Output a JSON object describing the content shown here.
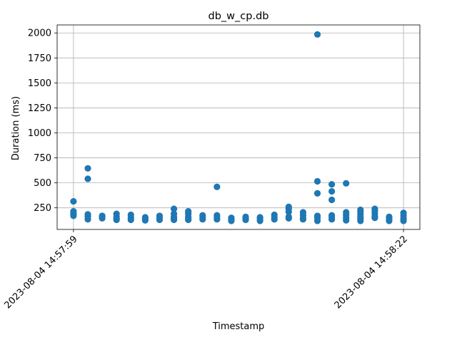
{
  "chart_data": {
    "type": "scatter",
    "title": "db_w_cp.db",
    "xlabel": "Timestamp",
    "ylabel": "Duration (ms)",
    "x_unit": "seconds",
    "xlim": [
      -1.14,
      24.14
    ],
    "ylim": [
      34,
      2080
    ],
    "yticks": [
      250,
      500,
      750,
      1000,
      1250,
      1500,
      1750,
      2000
    ],
    "yticklabels": [
      "250",
      "500",
      "750",
      "1000",
      "1250",
      "1500",
      "1750",
      "2000"
    ],
    "xticks": [
      0,
      23
    ],
    "xticklabels": [
      "2023-08-04 14:57:59",
      "2023-08-04 14:58:22"
    ],
    "grid": true,
    "marker_color": "#1f77b4",
    "series": [
      {
        "points": [
          [
            0,
            315
          ],
          [
            0,
            215
          ],
          [
            0,
            190
          ],
          [
            0,
            170
          ],
          [
            1,
            645
          ],
          [
            1,
            540
          ],
          [
            1,
            185
          ],
          [
            1,
            165
          ],
          [
            1,
            135
          ],
          [
            2,
            170
          ],
          [
            2,
            160
          ],
          [
            2,
            145
          ],
          [
            3,
            190
          ],
          [
            3,
            160
          ],
          [
            3,
            140
          ],
          [
            3,
            130
          ],
          [
            4,
            180
          ],
          [
            4,
            150
          ],
          [
            4,
            130
          ],
          [
            5,
            155
          ],
          [
            5,
            140
          ],
          [
            5,
            125
          ],
          [
            6,
            170
          ],
          [
            6,
            150
          ],
          [
            6,
            130
          ],
          [
            7,
            240
          ],
          [
            7,
            190
          ],
          [
            7,
            160
          ],
          [
            7,
            140
          ],
          [
            7,
            130
          ],
          [
            8,
            215
          ],
          [
            8,
            190
          ],
          [
            8,
            160
          ],
          [
            8,
            140
          ],
          [
            8,
            130
          ],
          [
            9,
            175
          ],
          [
            9,
            155
          ],
          [
            9,
            135
          ],
          [
            10,
            460
          ],
          [
            10,
            175
          ],
          [
            10,
            155
          ],
          [
            10,
            135
          ],
          [
            11,
            150
          ],
          [
            11,
            130
          ],
          [
            11,
            120
          ],
          [
            12,
            160
          ],
          [
            12,
            145
          ],
          [
            12,
            130
          ],
          [
            13,
            155
          ],
          [
            13,
            140
          ],
          [
            13,
            120
          ],
          [
            14,
            180
          ],
          [
            14,
            155
          ],
          [
            14,
            135
          ],
          [
            15,
            260
          ],
          [
            15,
            240
          ],
          [
            15,
            210
          ],
          [
            15,
            160
          ],
          [
            15,
            145
          ],
          [
            16,
            205
          ],
          [
            16,
            175
          ],
          [
            16,
            145
          ],
          [
            16,
            135
          ],
          [
            17,
            1985
          ],
          [
            17,
            515
          ],
          [
            17,
            395
          ],
          [
            17,
            170
          ],
          [
            17,
            150
          ],
          [
            17,
            120
          ],
          [
            18,
            485
          ],
          [
            18,
            415
          ],
          [
            18,
            330
          ],
          [
            18,
            175
          ],
          [
            18,
            155
          ],
          [
            18,
            135
          ],
          [
            19,
            495
          ],
          [
            19,
            205
          ],
          [
            19,
            180
          ],
          [
            19,
            150
          ],
          [
            19,
            125
          ],
          [
            20,
            230
          ],
          [
            20,
            210
          ],
          [
            20,
            185
          ],
          [
            20,
            160
          ],
          [
            20,
            140
          ],
          [
            20,
            120
          ],
          [
            21,
            240
          ],
          [
            21,
            220
          ],
          [
            21,
            195
          ],
          [
            21,
            165
          ],
          [
            21,
            150
          ],
          [
            22,
            160
          ],
          [
            22,
            140
          ],
          [
            22,
            120
          ],
          [
            23,
            200
          ],
          [
            23,
            170
          ],
          [
            23,
            140
          ],
          [
            23,
            120
          ]
        ]
      }
    ]
  }
}
